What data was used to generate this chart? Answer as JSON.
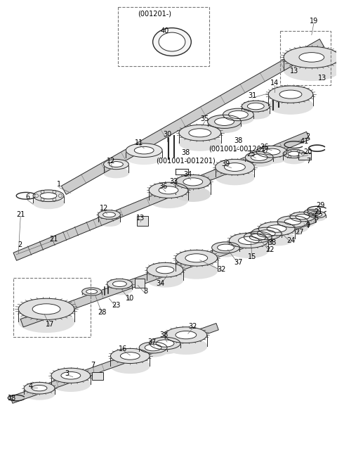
{
  "bg_color": "#ffffff",
  "line_color": "#2a2a2a",
  "label_color": "#000000",
  "fig_width": 4.8,
  "fig_height": 6.51,
  "dpi": 100
}
